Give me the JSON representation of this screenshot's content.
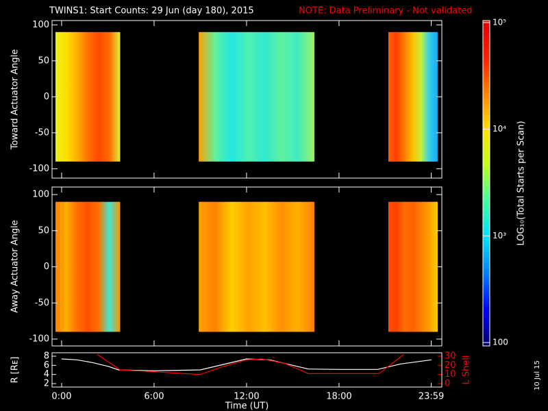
{
  "title": "TWINS1: Start Counts: 29 Jun (day 180), 2015",
  "note": "NOTE: Data Preliminary - Not validated",
  "date_stamp": "10 Jul 15",
  "chart_data": [
    {
      "type": "heatmap",
      "ylabel": "Toward Actuator Angle",
      "xlim": [
        -0.62,
        24.67
      ],
      "ylim": [
        -113,
        106
      ],
      "yticks": [
        100,
        50,
        0,
        -50,
        -100
      ],
      "angle_range": [
        -90,
        90
      ],
      "blocks": [
        {
          "x": [
            -0.4,
            3.8
          ],
          "colors": [
            "#e8f020",
            "#ffe000",
            "#ffb000",
            "#ff7000",
            "#ff4a00",
            "#ff6a00",
            "#e0f040"
          ]
        },
        {
          "x": [
            8.9,
            16.4
          ],
          "colors": [
            "#ffa000",
            "#60f0a0",
            "#20e8e0",
            "#50f0b0",
            "#30e8d0",
            "#60f0a0",
            "#40ecc0",
            "#a0f060"
          ]
        },
        {
          "x": [
            21.2,
            24.4
          ],
          "colors": [
            "#ff6000",
            "#ff4000",
            "#ff8000",
            "#ffc000",
            "#c0f040",
            "#30d0f0",
            "#20a8f0"
          ]
        }
      ]
    },
    {
      "type": "heatmap",
      "ylabel": "Away Actuator Angle",
      "xlim": [
        -0.62,
        24.67
      ],
      "ylim": [
        -109.5,
        110.5
      ],
      "yticks": [
        100,
        50,
        0,
        -50,
        -100
      ],
      "angle_range": [
        -90,
        90
      ],
      "blocks": [
        {
          "x": [
            -0.4,
            3.8
          ],
          "colors": [
            "#ff8000",
            "#ffb000",
            "#ff7000",
            "#ff5000",
            "#ff7000",
            "#40e8d0",
            "#ff9000"
          ]
        },
        {
          "x": [
            8.9,
            16.4
          ],
          "colors": [
            "#ffa000",
            "#ff8000",
            "#ffd000",
            "#ffa000",
            "#ffc000",
            "#ff9000",
            "#ffb000",
            "#ff8000"
          ]
        },
        {
          "x": [
            21.2,
            24.4
          ],
          "colors": [
            "#ff5000",
            "#ff4000",
            "#ff7000",
            "#ff6000",
            "#ff8000",
            "#ffa000",
            "#ffd000"
          ]
        }
      ]
    },
    {
      "type": "line",
      "xlabel": "Time (UT)",
      "ylabel": "R [Rᴇ]",
      "y2label": "L Shell",
      "xlim": [
        -0.62,
        24.67
      ],
      "ylim": [
        1.25,
        8.75
      ],
      "y2lim": [
        -3.75,
        33.75
      ],
      "xticks": [
        {
          "value": 0,
          "label": "0:00"
        },
        {
          "value": 6,
          "label": "6:00"
        },
        {
          "value": 12,
          "label": "12:00"
        },
        {
          "value": 18,
          "label": "18:00"
        },
        {
          "value": 23.983,
          "label": "23:59"
        }
      ],
      "yticks": [
        2,
        4,
        6,
        8
      ],
      "y2ticks": [
        0,
        10,
        20,
        30
      ],
      "series": [
        {
          "name": "R",
          "color": "#ffffff",
          "x": [
            0,
            1,
            2,
            3,
            3.7,
            6,
            9,
            10.5,
            12,
            13.5,
            16,
            18,
            20.5,
            22,
            24
          ],
          "values": [
            7.4,
            7.2,
            6.6,
            5.8,
            5.0,
            4.8,
            5.0,
            6.2,
            7.4,
            7.2,
            5.2,
            5.1,
            5.1,
            6.3,
            7.2
          ]
        },
        {
          "name": "L Shell",
          "color": "#ff0000",
          "axis": "y2",
          "x": [
            2.3,
            3.8,
            6,
            9,
            10.5,
            12,
            13,
            14.5,
            16,
            18,
            20.6,
            22.2
          ],
          "values": [
            32,
            15,
            13,
            10,
            19,
            26,
            27,
            22,
            11,
            11,
            11,
            32
          ]
        }
      ]
    },
    {
      "type": "colorbar",
      "label": "LOG₁₀(Total Starts per Scan)",
      "log": true,
      "ylim": [
        93,
        104500
      ],
      "yticks": [
        {
          "value": 100000,
          "label": "10⁵"
        },
        {
          "value": 10000,
          "label": "10⁴"
        },
        {
          "value": 1000,
          "label": "10³"
        },
        100
      ],
      "colors": [
        "#000060",
        "#0000ff",
        "#0080ff",
        "#00e0ff",
        "#40ffa0",
        "#c0ff20",
        "#ffe000",
        "#ff8000",
        "#ff2000",
        "#e00000"
      ]
    }
  ]
}
